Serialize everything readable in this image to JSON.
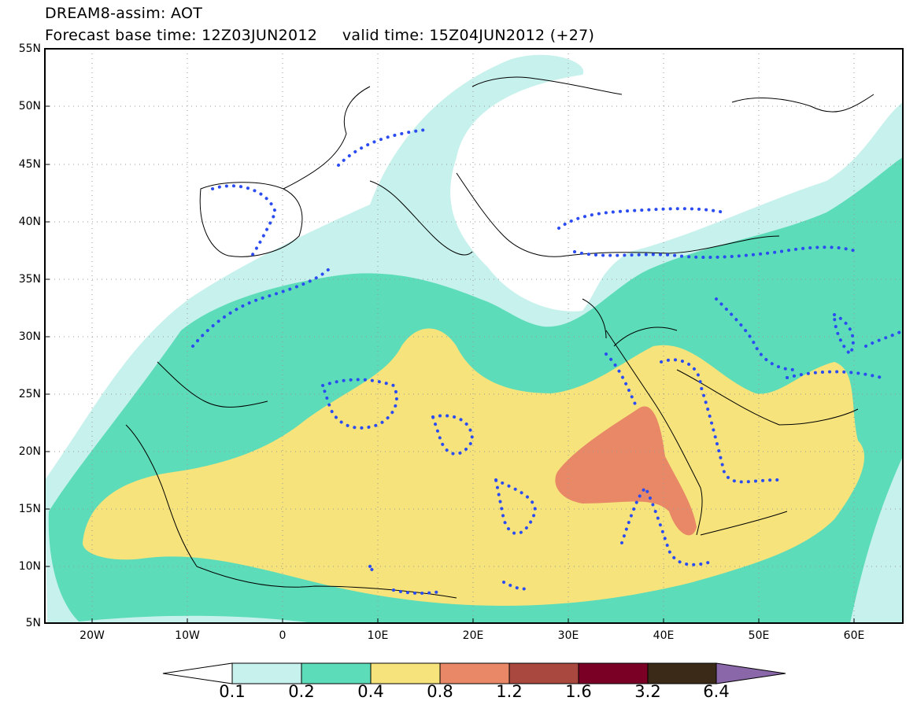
{
  "title": {
    "line1": "DREAM8-assim: AOT",
    "line2": "Forecast base time: 12Z03JUN2012     valid time: 15Z04JUN2012 (+27)"
  },
  "map": {
    "lat_labels": [
      "55N",
      "50N",
      "45N",
      "40N",
      "35N",
      "30N",
      "25N",
      "20N",
      "15N",
      "10N",
      "5N"
    ],
    "lon_labels": [
      "20W",
      "10W",
      "0",
      "10E",
      "20E",
      "30E",
      "40E",
      "50E",
      "60E"
    ],
    "lat_range": [
      5,
      55
    ],
    "lon_range": [
      -25,
      65
    ],
    "gridlines": true
  },
  "colorbar": {
    "labels": [
      "0.1",
      "0.2",
      "0.4",
      "0.8",
      "1.2",
      "1.6",
      "3.2",
      "6.4"
    ],
    "colors": {
      "lt01": "#ffffff",
      "c01_02": "#c6f1ec",
      "c02_04": "#5cdcb8",
      "c04_08": "#f6e37c",
      "c08_12": "#e98867",
      "c12_16": "#a8483f",
      "c16_32": "#7a0025",
      "c32_64": "#3b2a17",
      "gt64": "#8a67a8"
    }
  },
  "legend_colors": {
    "contour_dots": "#2b4cf0",
    "coastline": "#000000"
  }
}
